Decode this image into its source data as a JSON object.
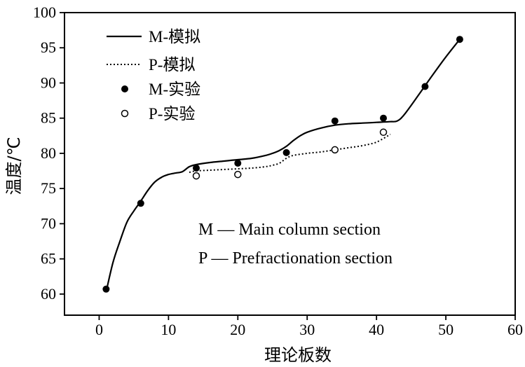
{
  "chart_data": {
    "type": "line",
    "xlabel": "理论板数",
    "ylabel": "温度/℃",
    "xlim": [
      -5,
      60
    ],
    "ylim": [
      57,
      100
    ],
    "xticks": [
      0,
      10,
      20,
      30,
      40,
      50,
      60
    ],
    "yticks": [
      60,
      65,
      70,
      75,
      80,
      85,
      90,
      95,
      100
    ],
    "grid": false,
    "legend_position": "top-left",
    "series": [
      {
        "name": "M-模拟",
        "style": "solid-line",
        "x": [
          1,
          2,
          3,
          4,
          5,
          6,
          7,
          8,
          9,
          10,
          11,
          12,
          13,
          14,
          16,
          18,
          20,
          22,
          24,
          25,
          26,
          27,
          28,
          29,
          30,
          32,
          34,
          36,
          38,
          40,
          42,
          43,
          44,
          46,
          48,
          50,
          52
        ],
        "y": [
          60.3,
          64.5,
          67.5,
          70.2,
          71.8,
          73.2,
          74.7,
          75.9,
          76.6,
          77.0,
          77.2,
          77.4,
          78.1,
          78.4,
          78.7,
          78.9,
          79.1,
          79.3,
          79.7,
          80.0,
          80.4,
          81.0,
          81.8,
          82.5,
          83.0,
          83.6,
          84.0,
          84.2,
          84.3,
          84.4,
          84.5,
          84.6,
          85.5,
          88.2,
          91.0,
          93.7,
          96.2
        ]
      },
      {
        "name": "P-模拟",
        "style": "dotted-line",
        "x": [
          13,
          14,
          16,
          18,
          20,
          22,
          24,
          25,
          26,
          27,
          28,
          30,
          32,
          34,
          36,
          38,
          40,
          42
        ],
        "y": [
          77.3,
          77.5,
          77.6,
          77.7,
          77.8,
          77.9,
          78.1,
          78.3,
          78.6,
          79.3,
          79.7,
          80.0,
          80.2,
          80.5,
          80.8,
          81.1,
          81.6,
          82.7
        ]
      },
      {
        "name": "M-实验",
        "style": "filled-marker",
        "x": [
          1,
          6,
          14,
          20,
          27,
          34,
          41,
          47,
          52
        ],
        "y": [
          60.7,
          72.9,
          77.9,
          78.6,
          80.1,
          84.6,
          85.0,
          89.5,
          96.2
        ]
      },
      {
        "name": "P-实验",
        "style": "open-marker",
        "x": [
          14,
          20,
          34,
          41
        ],
        "y": [
          76.8,
          77.0,
          80.5,
          83.0
        ]
      }
    ],
    "annotations": [
      "M — Main column section",
      "P — Prefractionation section"
    ]
  }
}
